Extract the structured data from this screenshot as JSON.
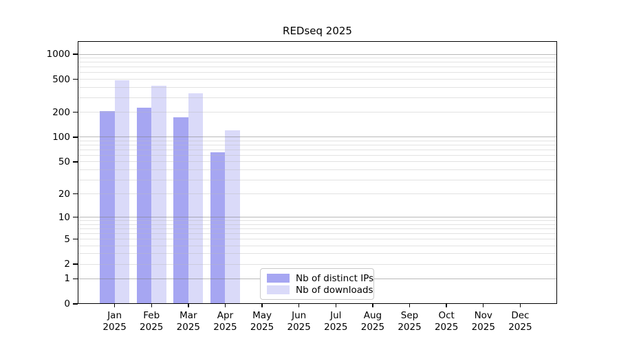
{
  "chart_data": {
    "type": "bar",
    "title": "REDseq 2025",
    "categories": [
      "Jan",
      "Feb",
      "Mar",
      "Apr",
      "May",
      "Jun",
      "Jul",
      "Aug",
      "Sep",
      "Oct",
      "Nov",
      "Dec"
    ],
    "year_label": "2025",
    "series": [
      {
        "name": "Nb of distinct IPs",
        "color": "#a6a6f2",
        "values": [
          207,
          227,
          175,
          65,
          0,
          0,
          0,
          0,
          0,
          0,
          0,
          0
        ]
      },
      {
        "name": "Nb of downloads",
        "color": "#dadaf9",
        "values": [
          490,
          420,
          340,
          122,
          0,
          0,
          0,
          0,
          0,
          0,
          0,
          0
        ]
      }
    ],
    "yscale": "log1p",
    "ylim": [
      0,
      1437
    ],
    "y_tick_values": [
      0,
      1,
      2,
      5,
      10,
      20,
      50,
      100,
      200,
      500,
      1000
    ],
    "y_tick_labels": [
      "0",
      "1",
      "2",
      "5",
      "10",
      "20",
      "50",
      "100",
      "200",
      "500",
      "1000"
    ],
    "gridlines_major": [
      1,
      10,
      100,
      1000
    ],
    "gridlines_minor": [
      2,
      3,
      4,
      5,
      6,
      7,
      8,
      9,
      20,
      30,
      40,
      50,
      60,
      70,
      80,
      90,
      200,
      300,
      400,
      500,
      600,
      700,
      800,
      900
    ],
    "grid": "on",
    "legend_position": "lower center",
    "xlabel": "",
    "ylabel": ""
  },
  "colors": {
    "background": "#ffffff",
    "axis": "#000000",
    "series_ips": "#a6a6f2",
    "series_downloads": "#dadaf9"
  }
}
